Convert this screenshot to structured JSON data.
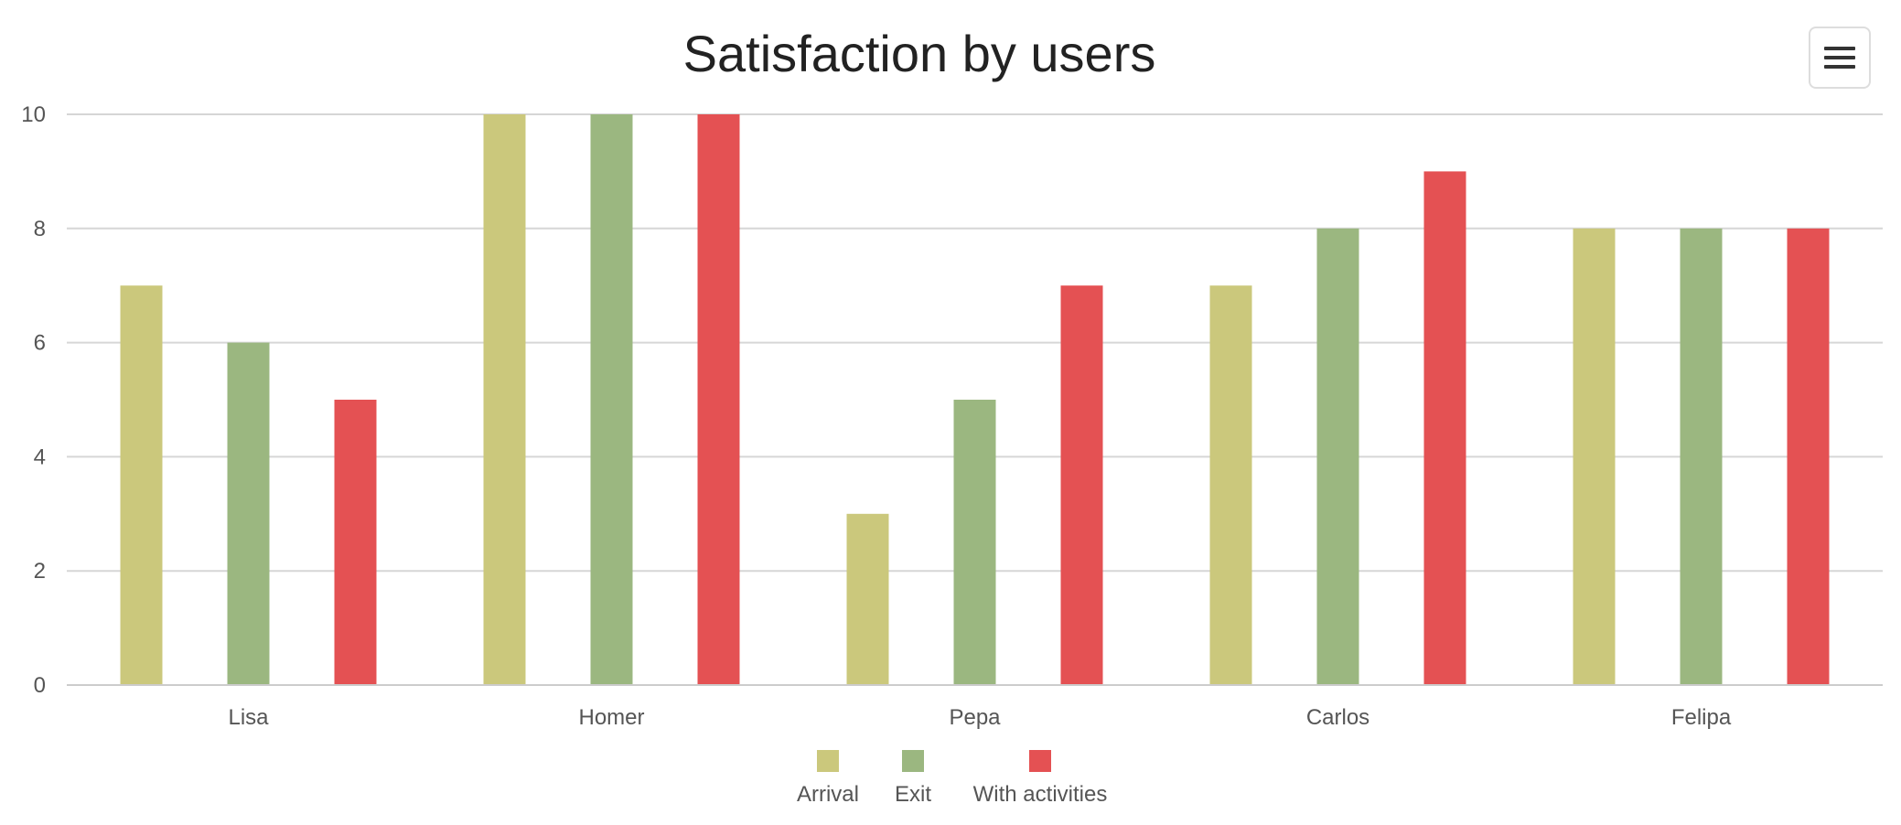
{
  "menu": {
    "icon": "hamburger-menu-icon"
  },
  "chart_data": {
    "type": "bar",
    "title": "Satisfaction by users",
    "xlabel": "",
    "ylabel": "",
    "categories": [
      "Lisa",
      "Homer",
      "Pepa",
      "Carlos",
      "Felipa"
    ],
    "series": [
      {
        "name": "Arrival",
        "color": "#cbc87c",
        "values": [
          7,
          10,
          3,
          7,
          8
        ]
      },
      {
        "name": "Exit",
        "color": "#9bb780",
        "values": [
          6,
          10,
          5,
          8,
          8
        ]
      },
      {
        "name": "With activities",
        "color": "#e45153",
        "values": [
          5,
          10,
          7,
          9,
          8
        ]
      }
    ],
    "ylim": [
      0,
      10
    ],
    "yticks": [
      "0",
      "2",
      "4",
      "6",
      "8",
      "10"
    ],
    "grid": true,
    "legend_position": "bottom-center"
  }
}
